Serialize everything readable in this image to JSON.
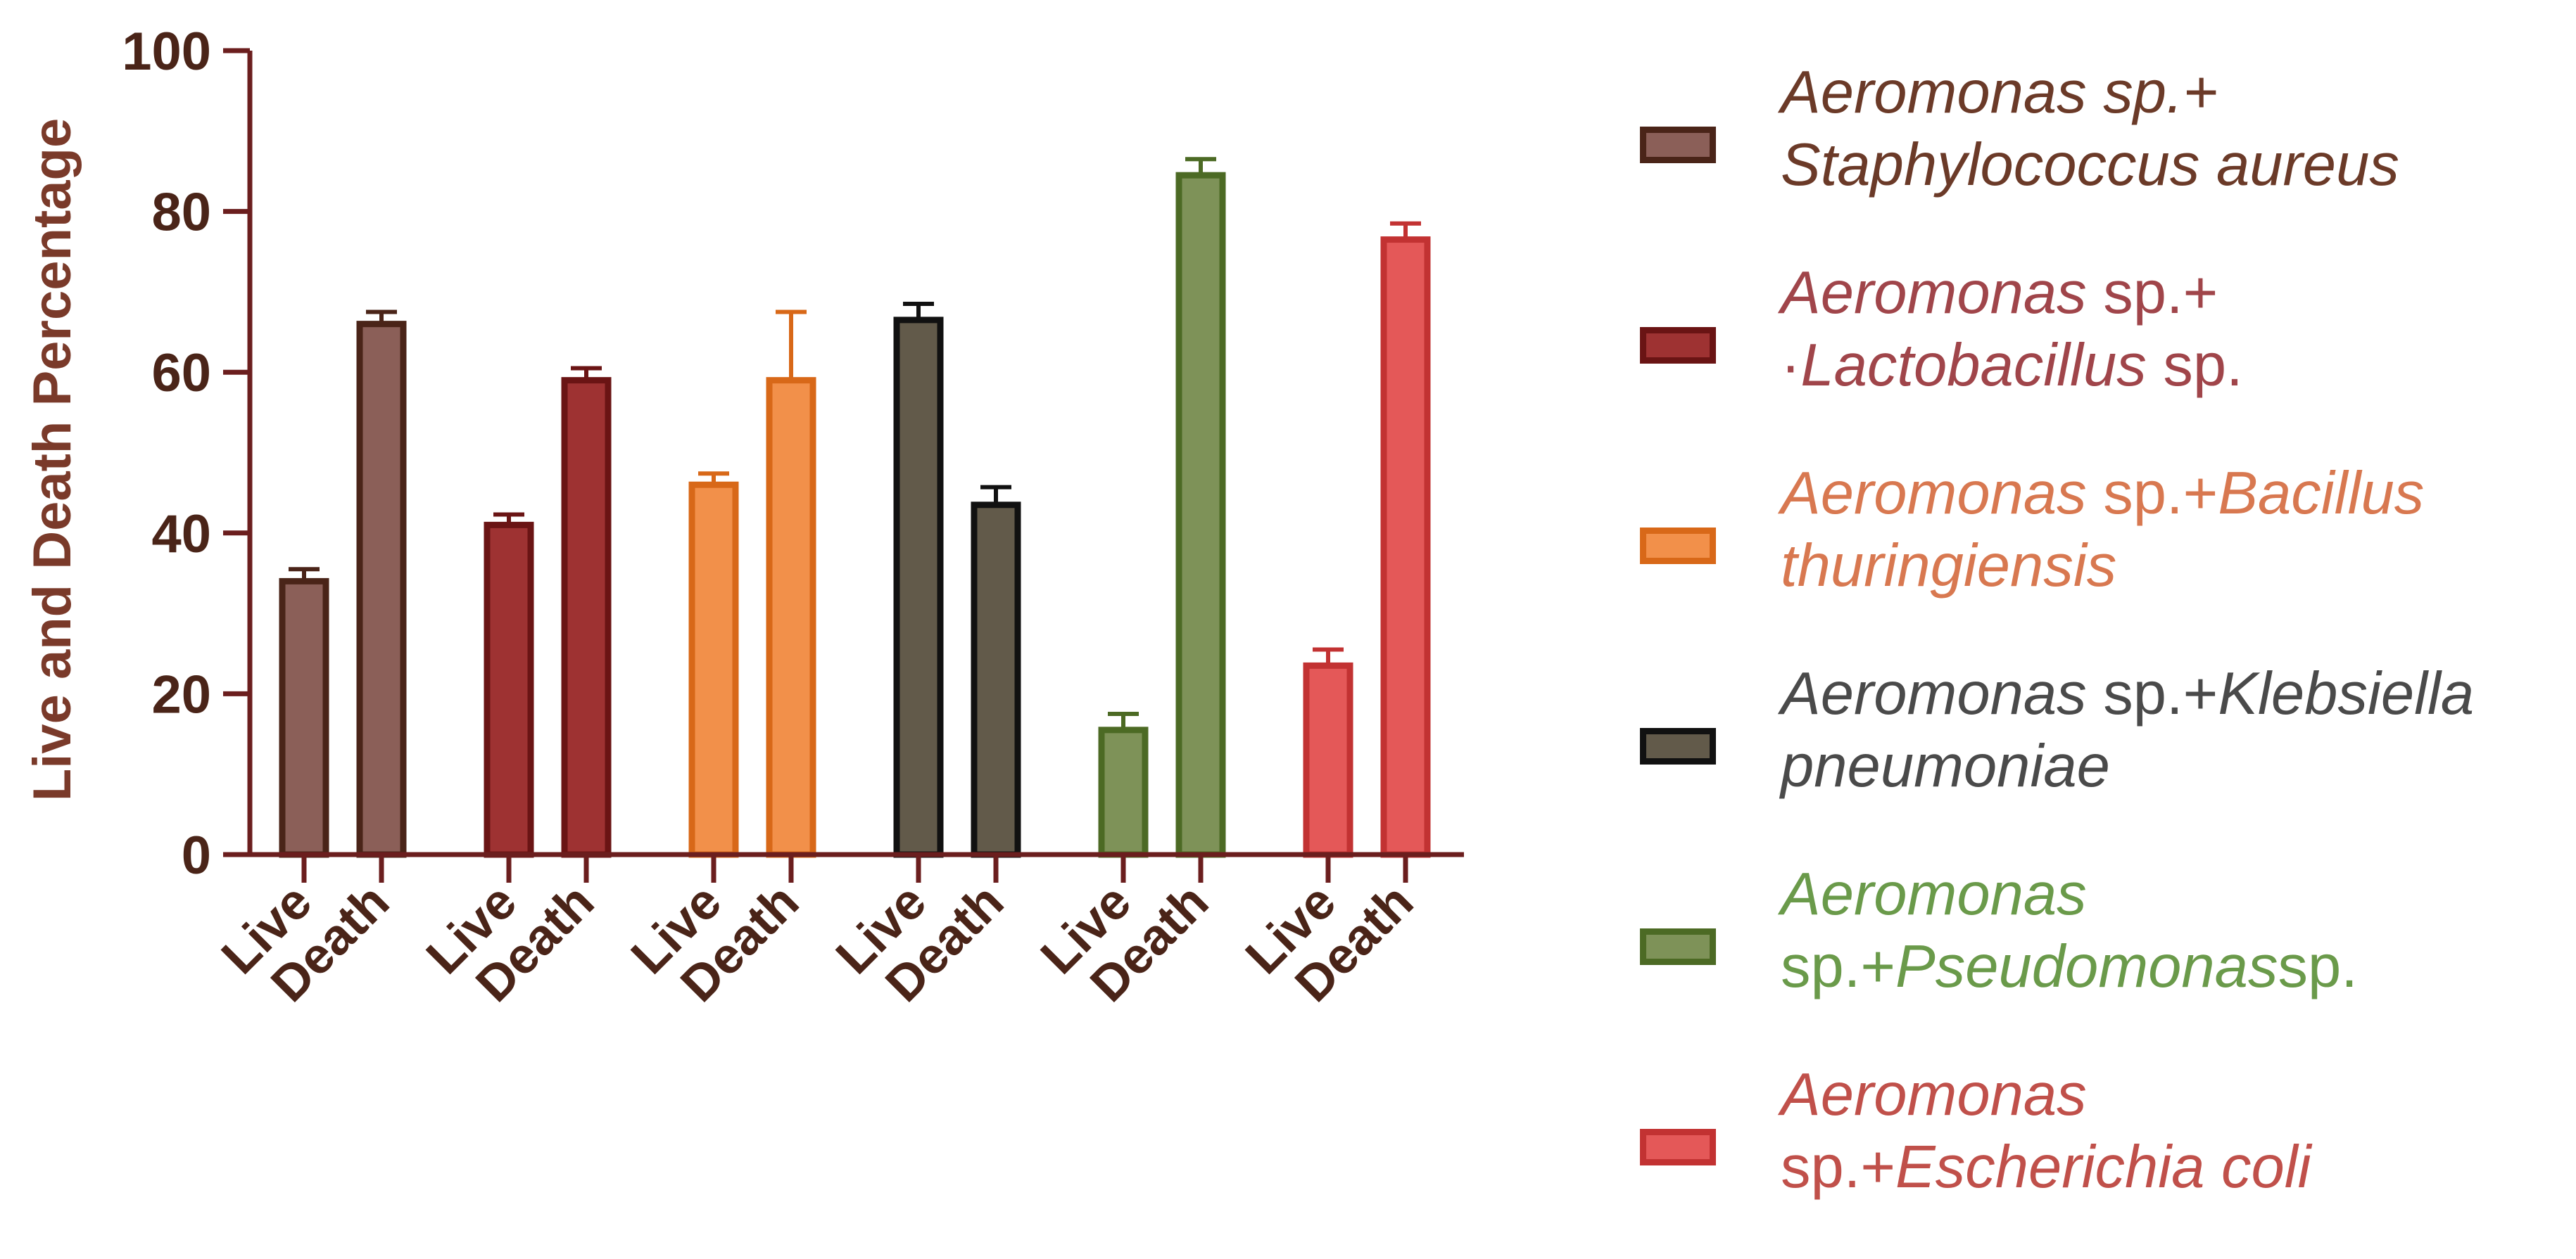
{
  "chart_data": {
    "type": "bar",
    "ylabel": "Live and Death Percentage",
    "xlabel": "",
    "ylim": [
      0,
      100
    ],
    "yticks": [
      0,
      20,
      40,
      60,
      80,
      100
    ],
    "grid": false,
    "legend_position": "right",
    "x_tick_labels": [
      "Live",
      "Death"
    ],
    "groups": [
      {
        "legend_lines": [
          [
            {
              "text": "Aeromonas sp.+",
              "italic": true
            }
          ],
          [
            {
              "text": "Staphylococcus aureus",
              "italic": true
            }
          ]
        ],
        "fill": "#8b5f58",
        "edge": "#4a2418",
        "text_color": "#6b3a28",
        "live": 34,
        "live_err": 1.5,
        "death": 66,
        "death_err": 1.5
      },
      {
        "legend_lines": [
          [
            {
              "text": "Aeromonas",
              "italic": true
            },
            {
              "text": " sp.+",
              "italic": false
            }
          ],
          [
            {
              "text": "·",
              "italic": false
            },
            {
              "text": "Lactobacillus",
              "italic": true
            },
            {
              "text": " sp.",
              "italic": false
            }
          ]
        ],
        "fill": "#9e3232",
        "edge": "#6a1414",
        "text_color": "#a0454a",
        "live": 41,
        "live_err": 1.3,
        "death": 59,
        "death_err": 1.5
      },
      {
        "legend_lines": [
          [
            {
              "text": "Aeromonas",
              "italic": true
            },
            {
              "text": " sp.+",
              "italic": false
            },
            {
              "text": "Bacillus",
              "italic": true
            }
          ],
          [
            {
              "text": "thuringiensis",
              "italic": true
            }
          ]
        ],
        "fill": "#f2904a",
        "edge": "#d86818",
        "text_color": "#d87850",
        "live": 46,
        "live_err": 1.4,
        "death": 59,
        "death_err": 8.5
      },
      {
        "legend_lines": [
          [
            {
              "text": "Aeromonas",
              "italic": true
            },
            {
              "text": " sp.+",
              "italic": false
            },
            {
              "text": "Klebsiella",
              "italic": true
            }
          ],
          [
            {
              "text": "pneumoniae",
              "italic": true
            }
          ]
        ],
        "fill": "#625a4a",
        "edge": "#111111",
        "text_color": "#4a4a4a",
        "live": 66.5,
        "live_err": 2.0,
        "death": 43.5,
        "death_err": 2.2
      },
      {
        "legend_lines": [
          [
            {
              "text": "Aeromonas",
              "italic": true
            }
          ],
          [
            {
              "text": "sp.+",
              "italic": false
            },
            {
              "text": "Pseudomonas",
              "italic": true
            },
            {
              "text": "sp.",
              "italic": false
            }
          ]
        ],
        "fill": "#7e9258",
        "edge": "#4c6a24",
        "text_color": "#6a9a4a",
        "live": 15.5,
        "live_err": 2.0,
        "death": 84.5,
        "death_err": 2.0
      },
      {
        "legend_lines": [
          [
            {
              "text": "Aeromonas",
              "italic": true
            }
          ],
          [
            {
              "text": "sp.+",
              "italic": false
            },
            {
              "text": "Escherichia coli",
              "italic": true
            }
          ]
        ],
        "fill": "#e45858",
        "edge": "#c23232",
        "text_color": "#c0504a",
        "live": 23.5,
        "live_err": 2.0,
        "death": 76.5,
        "death_err": 2.0
      }
    ]
  }
}
